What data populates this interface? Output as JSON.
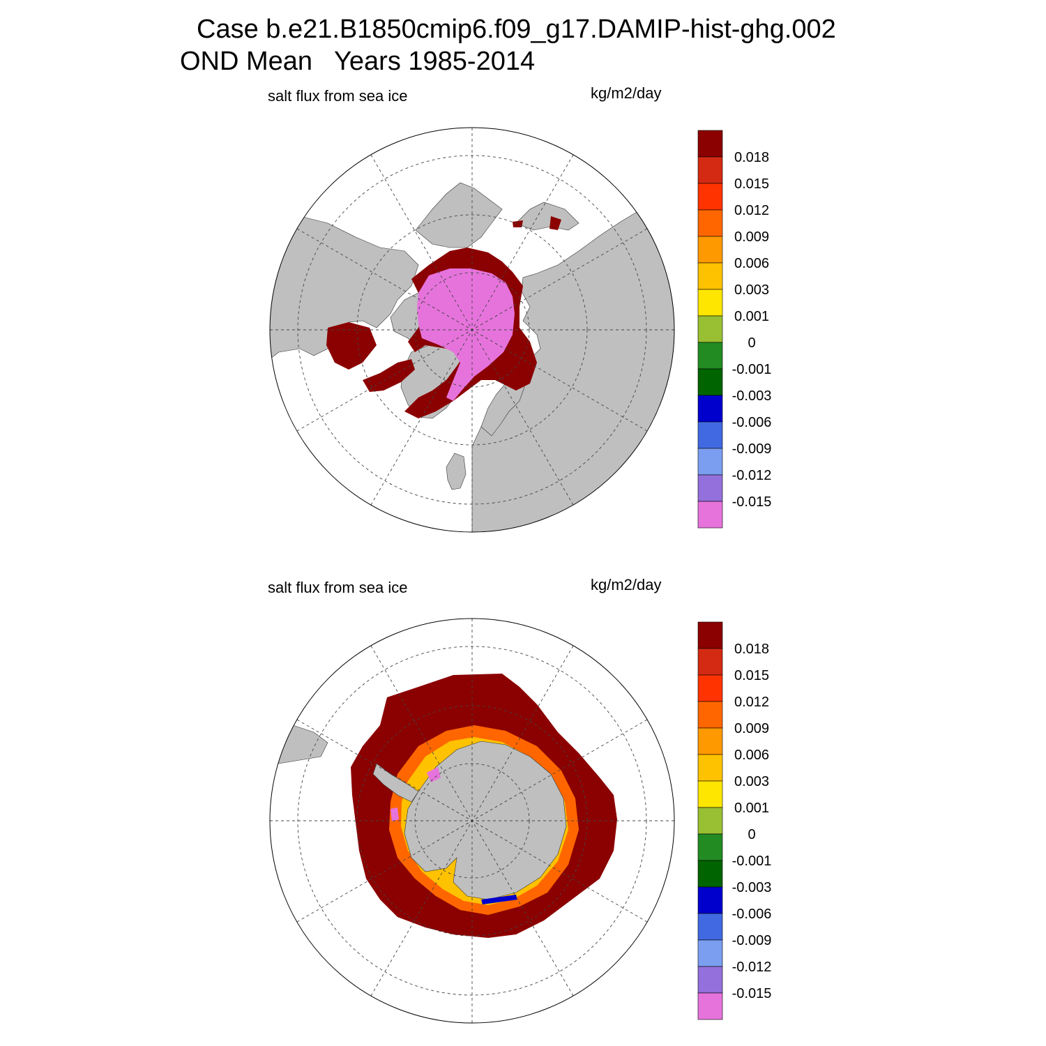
{
  "figure": {
    "title_line1": "Case b.e21.B1850cmip6.f09_g17.DAMIP-hist-ghg.002",
    "title_line2": "OND Mean   Years 1985-2014"
  },
  "panels": [
    {
      "id": "north",
      "hemisphere": "Northern Hemisphere polar stereographic",
      "left_label": "salt flux from sea ice",
      "right_label": "kg/m2/day"
    },
    {
      "id": "south",
      "hemisphere": "Southern Hemisphere polar stereographic",
      "left_label": "salt flux from sea ice",
      "right_label": "kg/m2/day"
    }
  ],
  "colorbar": {
    "labels": [
      "0.018",
      "0.015",
      "0.012",
      "0.009",
      "0.006",
      "0.003",
      "0.001",
      "0",
      "-0.001",
      "-0.003",
      "-0.006",
      "-0.009",
      "-0.012",
      "-0.015"
    ],
    "colors": [
      "#8b0000",
      "#d42a13",
      "#ff3300",
      "#ff6600",
      "#ff9900",
      "#ffc200",
      "#ffe600",
      "#99bf33",
      "#228b22",
      "#006400",
      "#0000cd",
      "#4169e1",
      "#7b9ef0",
      "#9370db",
      "#e673dc"
    ]
  },
  "map_colors": {
    "land": "#bfbfbf",
    "ocean": "#ffffff",
    "strong_positive": "#8b0000",
    "strong_negative": "#e673dc"
  }
}
